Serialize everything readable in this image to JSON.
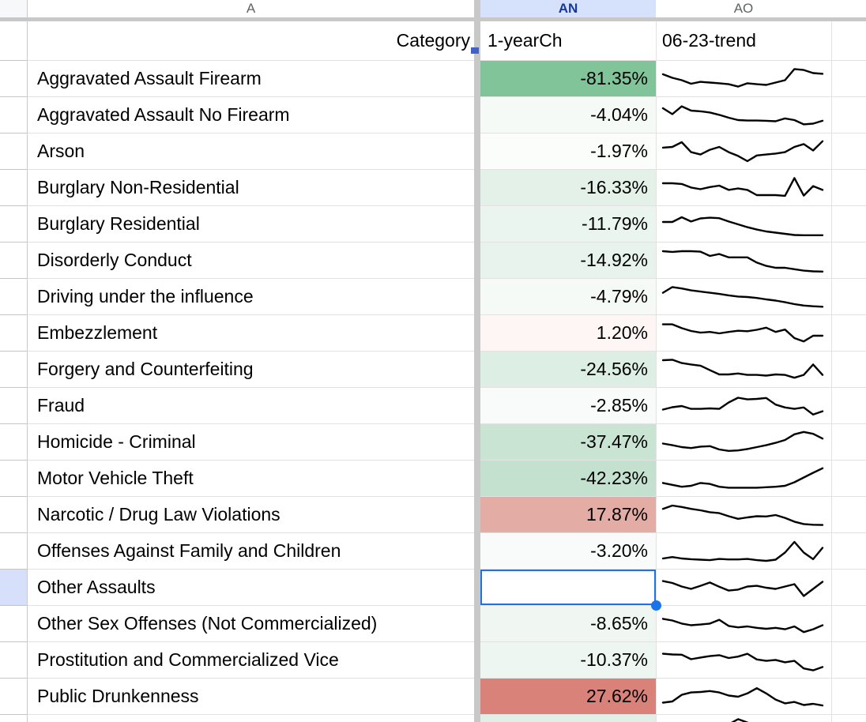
{
  "column_letters": {
    "a": "A",
    "an": "AN",
    "ao": "AO"
  },
  "header": {
    "category": "Category",
    "one_year_change": "1-yearCh",
    "trend": "06-23-trend"
  },
  "colors": {
    "selection_blue": "#1a73e8",
    "selected_col_header_bg": "#d6e2fc",
    "selected_col_header_text": "#17379e",
    "letter_text": "#5f6368",
    "freeze_bar": "#c8c8c8",
    "gridline": "#e2e2e2",
    "gutter_gridline": "#c5c5c5",
    "selected_row_gutter": "#d6e0fb",
    "sparkline": "#000000"
  },
  "rows": [
    {
      "category": "Aggravated Assault Firearm",
      "value": "-81.35%",
      "bg": "#82c49a",
      "selected": false,
      "spark": [
        30,
        45,
        55,
        70,
        62,
        65,
        68,
        72,
        82,
        68,
        72,
        75,
        65,
        55,
        8,
        12,
        25,
        28
      ]
    },
    {
      "category": "Aggravated Assault No Firearm",
      "value": "-4.04%",
      "bg": "#f6faf7",
      "selected": false,
      "spark": [
        20,
        45,
        12,
        30,
        33,
        38,
        48,
        60,
        70,
        72,
        72,
        73,
        75,
        63,
        70,
        88,
        85,
        73
      ]
    },
    {
      "category": "Arson",
      "value": "-1.97%",
      "bg": "#fbfdfb",
      "selected": false,
      "spark": [
        33,
        30,
        10,
        52,
        62,
        42,
        30,
        52,
        68,
        90,
        66,
        62,
        58,
        52,
        30,
        18,
        45,
        6
      ]
    },
    {
      "category": "Burglary Non-Residential",
      "value": "-16.33%",
      "bg": "#e4f1e9",
      "selected": false,
      "spark": [
        30,
        30,
        33,
        48,
        55,
        46,
        40,
        58,
        52,
        58,
        80,
        80,
        80,
        83,
        8,
        82,
        42,
        58
      ]
    },
    {
      "category": "Burglary Residential",
      "value": "-11.79%",
      "bg": "#ebf5ef",
      "selected": false,
      "spark": [
        40,
        40,
        20,
        38,
        25,
        22,
        24,
        38,
        50,
        62,
        72,
        80,
        85,
        90,
        95,
        96,
        96,
        96
      ]
    },
    {
      "category": "Disorderly Conduct",
      "value": "-14.92%",
      "bg": "#e7f3ec",
      "selected": false,
      "spark": [
        10,
        13,
        10,
        10,
        12,
        30,
        22,
        36,
        36,
        36,
        58,
        72,
        80,
        80,
        86,
        92,
        95,
        96
      ]
    },
    {
      "category": "Driving under the influence",
      "value": "-4.79%",
      "bg": "#f5faf7",
      "selected": false,
      "spark": [
        32,
        8,
        14,
        22,
        27,
        32,
        37,
        43,
        48,
        50,
        54,
        60,
        65,
        72,
        80,
        86,
        89,
        91
      ]
    },
    {
      "category": "Embezzlement",
      "value": "1.20%",
      "bg": "#fdf6f5",
      "selected": false,
      "spark": [
        12,
        12,
        28,
        40,
        47,
        44,
        50,
        44,
        39,
        41,
        35,
        26,
        44,
        34,
        70,
        84,
        60,
        60
      ]
    },
    {
      "category": "Forgery and Counterfeiting",
      "value": "-24.56%",
      "bg": "#ddeee4",
      "selected": false,
      "spark": [
        10,
        8,
        22,
        28,
        33,
        52,
        70,
        70,
        66,
        72,
        72,
        75,
        70,
        72,
        84,
        72,
        28,
        72
      ]
    },
    {
      "category": "Fraud",
      "value": "-2.85%",
      "bg": "#f9fbfa",
      "selected": false,
      "spark": [
        65,
        55,
        50,
        62,
        62,
        60,
        62,
        35,
        15,
        22,
        20,
        16,
        44,
        56,
        62,
        56,
        86,
        72
      ]
    },
    {
      "category": "Homicide - Criminal",
      "value": "-37.47%",
      "bg": "#c9e4d3",
      "selected": false,
      "spark": [
        55,
        62,
        70,
        74,
        68,
        66,
        80,
        86,
        84,
        78,
        70,
        62,
        52,
        40,
        16,
        6,
        14,
        34
      ]
    },
    {
      "category": "Motor Vehicle Theft",
      "value": "-42.23%",
      "bg": "#c3e1ce",
      "selected": false,
      "spark": [
        68,
        76,
        84,
        80,
        68,
        72,
        84,
        88,
        88,
        88,
        88,
        86,
        84,
        80,
        65,
        45,
        25,
        6
      ]
    },
    {
      "category": "Narcotic / Drug Law Violations",
      "value": "17.87%",
      "bg": "#e3aca4",
      "selected": false,
      "spark": [
        24,
        10,
        16,
        24,
        30,
        38,
        42,
        55,
        66,
        60,
        55,
        56,
        50,
        62,
        78,
        88,
        91,
        92
      ]
    },
    {
      "category": "Offenses Against Family and Children",
      "value": "-3.20%",
      "bg": "#f8fbf9",
      "selected": false,
      "spark": [
        80,
        74,
        80,
        83,
        85,
        87,
        82,
        84,
        84,
        82,
        87,
        90,
        85,
        55,
        10,
        55,
        83,
        35
      ]
    },
    {
      "category": "Other Assaults",
      "value": "",
      "bg": "#ffffff",
      "selected": true,
      "spark": [
        22,
        30,
        45,
        55,
        42,
        28,
        46,
        62,
        58,
        45,
        42,
        50,
        55,
        45,
        35,
        85,
        55,
        25
      ]
    },
    {
      "category": "Other Sex Offenses (Not Commercialized)",
      "value": "-8.65%",
      "bg": "#f0f7f3",
      "selected": false,
      "spark": [
        28,
        35,
        48,
        55,
        52,
        48,
        32,
        58,
        64,
        60,
        66,
        70,
        66,
        72,
        60,
        84,
        72,
        55
      ]
    },
    {
      "category": "Prostitution and Commercialized Vice",
      "value": "-10.37%",
      "bg": "#eef6f1",
      "selected": false,
      "spark": [
        22,
        25,
        26,
        45,
        38,
        32,
        28,
        40,
        34,
        22,
        46,
        52,
        48,
        58,
        52,
        84,
        92,
        78
      ]
    },
    {
      "category": "Public Drunkenness",
      "value": "27.62%",
      "bg": "#d8827a",
      "selected": false,
      "spark": [
        75,
        70,
        42,
        32,
        30,
        26,
        32,
        45,
        50,
        36,
        14,
        36,
        62,
        78,
        72,
        85,
        80,
        87
      ]
    }
  ],
  "partial_row": {
    "category": "",
    "value": "",
    "bg": "#e0f0e6",
    "selected": false,
    "spark": [
      98,
      96,
      95,
      95,
      92,
      80,
      60,
      30,
      8,
      22,
      60,
      90,
      98,
      98,
      98,
      98,
      98,
      98
    ]
  }
}
